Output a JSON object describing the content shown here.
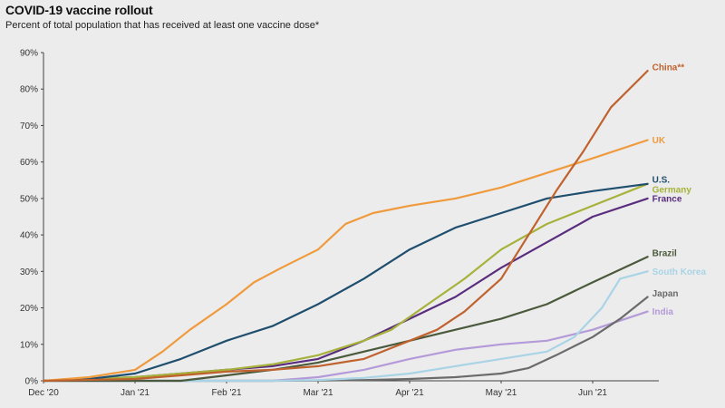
{
  "chart_data": {
    "type": "line",
    "title": "COVID-19 vaccine rollout",
    "subtitle": "Percent of total population that has received at least one vaccine dose*",
    "xlabel": "",
    "ylabel": "",
    "x_ticks": [
      "Dec '20",
      "Jan '21",
      "Feb '21",
      "Mar '21",
      "Apr '21",
      "May '21",
      "Jun '21"
    ],
    "x_range": [
      0,
      6.6
    ],
    "ylim": [
      0,
      90
    ],
    "y_ticks": [
      0,
      10,
      20,
      30,
      40,
      50,
      60,
      70,
      80,
      90
    ],
    "y_tick_labels": [
      "0%",
      "10%",
      "20%",
      "30%",
      "40%",
      "50%",
      "60%",
      "70%",
      "80%",
      "90%"
    ],
    "grid": false,
    "legend": "inline labels at line ends",
    "series": [
      {
        "name": "China**",
        "color": "#c0622e",
        "x": [
          0,
          1,
          1.5,
          2,
          2.5,
          3,
          3.5,
          4,
          4.3,
          4.6,
          5,
          5.3,
          5.6,
          5.9,
          6.2,
          6.6
        ],
        "y": [
          0,
          0.5,
          1.5,
          2.5,
          3,
          4,
          6,
          11,
          14,
          19,
          28,
          40,
          52,
          63,
          75,
          85
        ]
      },
      {
        "name": "UK",
        "color": "#f09a3e",
        "x": [
          0,
          0.5,
          1,
          1.3,
          1.6,
          2,
          2.3,
          2.6,
          3,
          3.3,
          3.6,
          4,
          4.5,
          5,
          5.5,
          6,
          6.6
        ],
        "y": [
          0,
          1,
          3,
          8,
          14,
          21,
          27,
          31,
          36,
          43,
          46,
          48,
          50,
          53,
          57,
          61,
          66
        ]
      },
      {
        "name": "U.S.",
        "color": "#1f4e6e",
        "x": [
          0,
          0.5,
          1,
          1.5,
          2,
          2.5,
          3,
          3.5,
          4,
          4.5,
          5,
          5.5,
          6,
          6.6
        ],
        "y": [
          0,
          0.5,
          2,
          6,
          11,
          15,
          21,
          28,
          36,
          42,
          46,
          50,
          52,
          54
        ]
      },
      {
        "name": "Germany",
        "color": "#a6b23a",
        "x": [
          0,
          1,
          1.5,
          2,
          2.5,
          3,
          3.5,
          3.8,
          4.2,
          4.6,
          5,
          5.5,
          6,
          6.6
        ],
        "y": [
          0,
          1,
          2,
          3,
          4.5,
          7,
          11,
          14,
          21,
          28,
          36,
          43,
          48,
          54
        ]
      },
      {
        "name": "France",
        "color": "#5a2d7e",
        "x": [
          0,
          1,
          1.5,
          2,
          2.5,
          3,
          3.5,
          4,
          4.5,
          5,
          5.5,
          6,
          6.6
        ],
        "y": [
          0,
          1,
          2,
          3,
          4,
          6,
          11,
          17,
          23,
          31,
          38,
          45,
          50
        ]
      },
      {
        "name": "Brazil",
        "color": "#4b5a3c",
        "x": [
          0,
          1.5,
          2,
          2.5,
          3,
          3.5,
          4,
          4.5,
          5,
          5.5,
          6,
          6.6
        ],
        "y": [
          0,
          0,
          1.5,
          3,
          5,
          8,
          11,
          14,
          17,
          21,
          27,
          34
        ]
      },
      {
        "name": "South Korea",
        "color": "#a9d4e6",
        "x": [
          0,
          2.5,
          3,
          3.5,
          4,
          4.5,
          5,
          5.5,
          5.8,
          6.1,
          6.3,
          6.6
        ],
        "y": [
          0,
          0,
          0.2,
          0.8,
          2,
          4,
          6,
          8,
          12,
          20,
          28,
          30
        ]
      },
      {
        "name": "Japan",
        "color": "#6b6b6b",
        "x": [
          0,
          2.5,
          3,
          3.5,
          4,
          4.5,
          5,
          5.3,
          5.6,
          6,
          6.3,
          6.6
        ],
        "y": [
          0,
          0,
          0.1,
          0.2,
          0.5,
          1,
          2,
          3.5,
          7,
          12,
          17,
          23
        ]
      },
      {
        "name": "India",
        "color": "#b49ad8",
        "x": [
          0,
          2.5,
          3,
          3.5,
          4,
          4.5,
          5,
          5.5,
          6,
          6.6
        ],
        "y": [
          0,
          0,
          1,
          3,
          6,
          8.5,
          10,
          11,
          14,
          19
        ]
      }
    ]
  }
}
